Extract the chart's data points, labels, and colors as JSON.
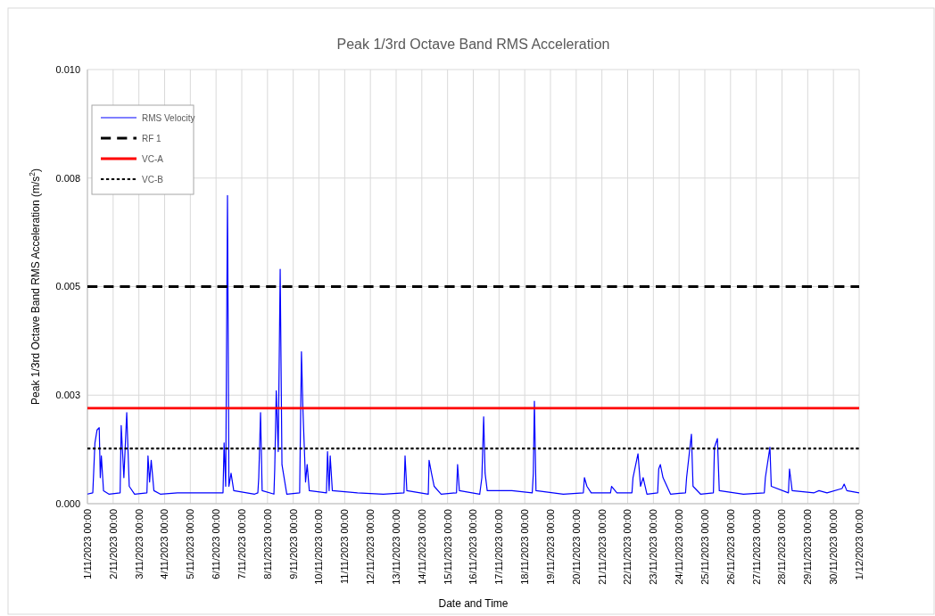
{
  "chart_data": {
    "type": "line",
    "title": "Peak 1/3rd Octave Band RMS Acceleration",
    "xlabel": "Date and Time",
    "ylabel": "Peak 1/3rd Octave Band RMS Acceleration (m/s$^{2}$)",
    "xlim": [
      "2023-11-01T00:00",
      "2023-12-01T00:00"
    ],
    "xticks": [
      {
        "value": "2023-11-01T00:00",
        "label": "1/11/2023 00:00"
      },
      {
        "value": "2023-11-02T00:00",
        "label": "2/11/2023 00:00"
      },
      {
        "value": "2023-11-03T00:00",
        "label": "3/11/2023 00:00"
      },
      {
        "value": "2023-11-04T00:00",
        "label": "4/11/2023 00:00"
      },
      {
        "value": "2023-11-05T00:00",
        "label": "5/11/2023 00:00"
      },
      {
        "value": "2023-11-06T00:00",
        "label": "6/11/2023 00:00"
      },
      {
        "value": "2023-11-07T00:00",
        "label": "7/11/2023 00:00"
      },
      {
        "value": "2023-11-08T00:00",
        "label": "8/11/2023 00:00"
      },
      {
        "value": "2023-11-09T00:00",
        "label": "9/11/2023 00:00"
      },
      {
        "value": "2023-11-10T00:00",
        "label": "10/11/2023 00:00"
      },
      {
        "value": "2023-11-11T00:00",
        "label": "11/11/2023 00:00"
      },
      {
        "value": "2023-11-12T00:00",
        "label": "12/11/2023 00:00"
      },
      {
        "value": "2023-11-13T00:00",
        "label": "13/11/2023 00:00"
      },
      {
        "value": "2023-11-14T00:00",
        "label": "14/11/2023 00:00"
      },
      {
        "value": "2023-11-15T00:00",
        "label": "15/11/2023 00:00"
      },
      {
        "value": "2023-11-16T00:00",
        "label": "16/11/2023 00:00"
      },
      {
        "value": "2023-11-17T00:00",
        "label": "17/11/2023 00:00"
      },
      {
        "value": "2023-11-18T00:00",
        "label": "18/11/2023 00:00"
      },
      {
        "value": "2023-11-19T00:00",
        "label": "19/11/2023 00:00"
      },
      {
        "value": "2023-11-20T00:00",
        "label": "20/11/2023 00:00"
      },
      {
        "value": "2023-11-21T00:00",
        "label": "21/11/2023 00:00"
      },
      {
        "value": "2023-11-22T00:00",
        "label": "22/11/2023 00:00"
      },
      {
        "value": "2023-11-23T00:00",
        "label": "23/11/2023 00:00"
      },
      {
        "value": "2023-11-24T00:00",
        "label": "24/11/2023 00:00"
      },
      {
        "value": "2023-11-25T00:00",
        "label": "25/11/2023 00:00"
      },
      {
        "value": "2023-11-26T00:00",
        "label": "26/11/2023 00:00"
      },
      {
        "value": "2023-11-27T00:00",
        "label": "27/11/2023 00:00"
      },
      {
        "value": "2023-11-28T00:00",
        "label": "28/11/2023 00:00"
      },
      {
        "value": "2023-11-29T00:00",
        "label": "29/11/2023 00:00"
      },
      {
        "value": "2023-11-30T00:00",
        "label": "30/11/2023 00:00"
      },
      {
        "value": "2023-12-01T00:00",
        "label": "1/12/2023 00:00"
      }
    ],
    "ylim": [
      0,
      0.01
    ],
    "yticks": [
      {
        "value": 0,
        "label": "0.000"
      },
      {
        "value": 0.0025,
        "label": "0.003"
      },
      {
        "value": 0.005,
        "label": "0.005"
      },
      {
        "value": 0.0075,
        "label": "0.008"
      },
      {
        "value": 0.01,
        "label": "0.010"
      }
    ],
    "grid": true,
    "legend": "top left",
    "marker": "none",
    "line_style": "solid",
    "series": [
      {
        "name": "RMS Velocity",
        "color": "#0000ff",
        "x": [
          "2023-11-01T00:00",
          "2023-11-01T05:00",
          "2023-11-01T07:00",
          "2023-11-01T09:00",
          "2023-11-01T11:00",
          "2023-11-01T12:00",
          "2023-11-01T13:00",
          "2023-11-01T15:00",
          "2023-11-01T20:00",
          "2023-11-02T06:30",
          "2023-11-02T07:30",
          "2023-11-02T10:00",
          "2023-11-02T12:40",
          "2023-11-02T15:00",
          "2023-11-02T20:00",
          "2023-11-03T07:30",
          "2023-11-03T08:30",
          "2023-11-03T10:00",
          "2023-11-03T11:30",
          "2023-11-03T14:00",
          "2023-11-03T20:00",
          "2023-11-04T12:00",
          "2023-11-05T12:00",
          "2023-11-06T06:30",
          "2023-11-06T07:30",
          "2023-11-06T09:00",
          "2023-11-06T10:40",
          "2023-11-06T12:00",
          "2023-11-06T14:00",
          "2023-11-06T16:30",
          "2023-11-07T12:00",
          "2023-11-07T15:00",
          "2023-11-07T15:50",
          "2023-11-07T17:30",
          "2023-11-07T19:00",
          "2023-11-08T06:00",
          "2023-11-08T06:45",
          "2023-11-08T08:10",
          "2023-11-08T10:00",
          "2023-11-08T11:50",
          "2023-11-08T13:30",
          "2023-11-08T18:00",
          "2023-11-09T06:00",
          "2023-11-09T07:40",
          "2023-11-09T09:00",
          "2023-11-09T11:30",
          "2023-11-09T13:00",
          "2023-11-09T15:00",
          "2023-11-10T07:00",
          "2023-11-10T08:00",
          "2023-11-10T09:30",
          "2023-11-10T10:30",
          "2023-11-10T12:30",
          "2023-11-11T12:00",
          "2023-11-12T12:00",
          "2023-11-13T07:20",
          "2023-11-13T08:20",
          "2023-11-13T10:00",
          "2023-11-14T06:00",
          "2023-11-14T06:45",
          "2023-11-14T09:00",
          "2023-11-14T11:30",
          "2023-11-14T18:00",
          "2023-11-15T08:20",
          "2023-11-15T09:20",
          "2023-11-15T11:00",
          "2023-11-16T06:00",
          "2023-11-16T08:00",
          "2023-11-16T09:40",
          "2023-11-16T11:00",
          "2023-11-16T13:00",
          "2023-11-17T12:00",
          "2023-11-18T07:00",
          "2023-11-18T08:00",
          "2023-11-18T09:00",
          "2023-11-18T10:30",
          "2023-11-19T12:00",
          "2023-11-20T06:40",
          "2023-11-20T07:40",
          "2023-11-20T10:00",
          "2023-11-20T14:00",
          "2023-11-21T08:00",
          "2023-11-21T09:00",
          "2023-11-21T14:00",
          "2023-11-22T04:00",
          "2023-11-22T05:00",
          "2023-11-22T09:40",
          "2023-11-22T12:00",
          "2023-11-22T14:30",
          "2023-11-22T18:00",
          "2023-11-23T04:00",
          "2023-11-23T05:00",
          "2023-11-23T06:30",
          "2023-11-23T09:00",
          "2023-11-23T16:00",
          "2023-11-24T06:00",
          "2023-11-24T07:00",
          "2023-11-24T11:30",
          "2023-11-24T13:00",
          "2023-11-24T20:00",
          "2023-11-25T08:00",
          "2023-11-25T09:00",
          "2023-11-25T11:45",
          "2023-11-25T13:30",
          "2023-11-26T12:00",
          "2023-11-27T07:30",
          "2023-11-27T08:30",
          "2023-11-27T12:45",
          "2023-11-27T14:00",
          "2023-11-28T06:00",
          "2023-11-28T07:00",
          "2023-11-28T09:30",
          "2023-11-29T06:00",
          "2023-11-29T10:30",
          "2023-11-29T18:00",
          "2023-11-30T08:00",
          "2023-11-30T10:00",
          "2023-11-30T12:30",
          "2023-12-01T00:00"
        ],
        "values": [
          0.00022,
          0.00025,
          0.0014,
          0.0017,
          0.00175,
          0.0006,
          0.0011,
          0.0003,
          0.00022,
          0.00025,
          0.0018,
          0.0006,
          0.0021,
          0.0004,
          0.00022,
          0.00025,
          0.0011,
          0.0005,
          0.001,
          0.0003,
          0.00022,
          0.00025,
          0.00025,
          0.00025,
          0.0014,
          0.0004,
          0.0071,
          0.0004,
          0.0007,
          0.0003,
          0.00022,
          0.00025,
          0.0006,
          0.0021,
          0.0003,
          0.00022,
          0.0008,
          0.0026,
          0.0012,
          0.0054,
          0.0009,
          0.00022,
          0.00025,
          0.0035,
          0.0022,
          0.0005,
          0.0009,
          0.0003,
          0.00025,
          0.0012,
          0.0003,
          0.0011,
          0.0003,
          0.00025,
          0.00022,
          0.00025,
          0.0011,
          0.0003,
          0.00022,
          0.001,
          0.0007,
          0.0004,
          0.00022,
          0.00025,
          0.0009,
          0.0003,
          0.00022,
          0.0006,
          0.002,
          0.0007,
          0.0003,
          0.0003,
          0.00025,
          0.0007,
          0.00236,
          0.0003,
          0.00022,
          0.00025,
          0.0006,
          0.0004,
          0.00025,
          0.00025,
          0.0004,
          0.00025,
          0.00025,
          0.0006,
          0.00115,
          0.0004,
          0.0006,
          0.00022,
          0.00025,
          0.0008,
          0.0009,
          0.0006,
          0.00022,
          0.00025,
          0.0006,
          0.0016,
          0.0004,
          0.00022,
          0.00025,
          0.0013,
          0.0015,
          0.0003,
          0.00022,
          0.00025,
          0.0006,
          0.0013,
          0.0004,
          0.00025,
          0.0008,
          0.0003,
          0.00025,
          0.0003,
          0.00025,
          0.00035,
          0.00045,
          0.0003,
          0.00025
        ]
      }
    ],
    "ref_lines": [
      {
        "axis": "y",
        "value": 0.005,
        "label": "RF 1",
        "color": "#000000",
        "line_style": "dashed"
      },
      {
        "axis": "y",
        "value": 0.0022,
        "label": "VC-A",
        "color": "#ff0000",
        "line_style": "solid"
      },
      {
        "axis": "y",
        "value": 0.00127,
        "label": "VC-B",
        "color": "#000000",
        "line_style": "dotted"
      }
    ]
  }
}
